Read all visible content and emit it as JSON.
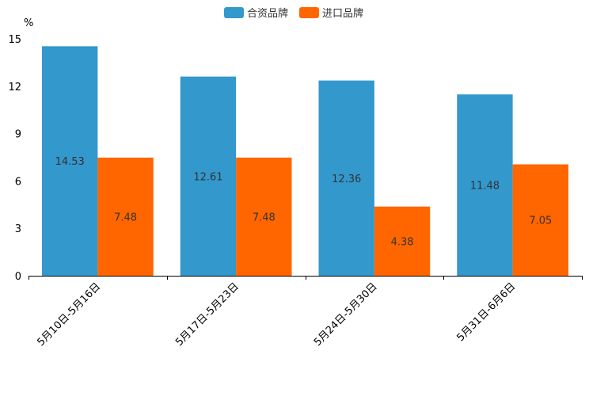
{
  "chart_data": {
    "type": "bar",
    "title": "",
    "xlabel": "",
    "ylabel": "%",
    "ylim": [
      0,
      15
    ],
    "yticks": [
      0,
      3,
      6,
      9,
      12,
      15
    ],
    "categories": [
      "5月10日-5月16日",
      "5月17日-5月23日",
      "5月24日-5月30日",
      "5月31日-6月6日"
    ],
    "series": [
      {
        "name": "合资品牌",
        "color": "#3398cc",
        "values": [
          14.53,
          12.61,
          12.36,
          11.48
        ]
      },
      {
        "name": "进口品牌",
        "color": "#ff6600",
        "values": [
          7.48,
          7.48,
          4.38,
          7.05
        ]
      }
    ],
    "legend_position": "top-center",
    "grid": false
  }
}
